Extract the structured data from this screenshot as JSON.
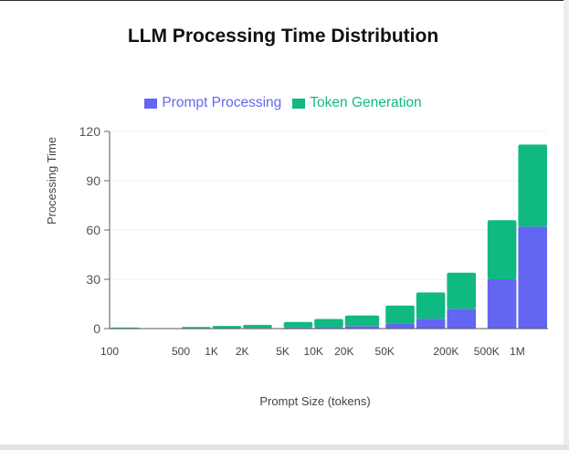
{
  "chart_data": {
    "type": "bar",
    "stacked": true,
    "title": "LLM Processing Time Distribution",
    "xlabel": "Prompt Size (tokens)",
    "ylabel": "Processing Time",
    "x_scale": "log",
    "ylim": [
      0,
      120
    ],
    "yticks": [
      0,
      30,
      60,
      90,
      120
    ],
    "xtick_labels": [
      {
        "label": "100",
        "value": 100
      },
      {
        "label": "500",
        "value": 500
      },
      {
        "label": "1K",
        "value": 1000
      },
      {
        "label": "2K",
        "value": 2000
      },
      {
        "label": "5K",
        "value": 5000
      },
      {
        "label": "10K",
        "value": 10000
      },
      {
        "label": "20K",
        "value": 20000
      },
      {
        "label": "50K",
        "value": 50000
      },
      {
        "label": "200K",
        "value": 200000
      },
      {
        "label": "500K",
        "value": 500000
      },
      {
        "label": "1M",
        "value": 1000000
      }
    ],
    "bins": [
      [
        100,
        200
      ],
      [
        500,
        1000
      ],
      [
        1000,
        2000
      ],
      [
        2000,
        4000
      ],
      [
        5000,
        10000
      ],
      [
        10000,
        20000
      ],
      [
        20000,
        45000
      ],
      [
        50000,
        100000
      ],
      [
        100000,
        200000
      ],
      [
        200000,
        400000
      ],
      [
        500000,
        1000000
      ],
      [
        1000000,
        2000000
      ]
    ],
    "series": [
      {
        "name": "Prompt Processing",
        "color": "#6366f1",
        "values": [
          0.1,
          0.2,
          0.3,
          0.4,
          0.6,
          0.9,
          1.5,
          3,
          6,
          12,
          30,
          62
        ]
      },
      {
        "name": "Token Generation",
        "color": "#10b981",
        "values": [
          0.5,
          0.8,
          1.3,
          1.9,
          3.4,
          4.9,
          6.5,
          11,
          16,
          22,
          36,
          50
        ]
      }
    ]
  }
}
